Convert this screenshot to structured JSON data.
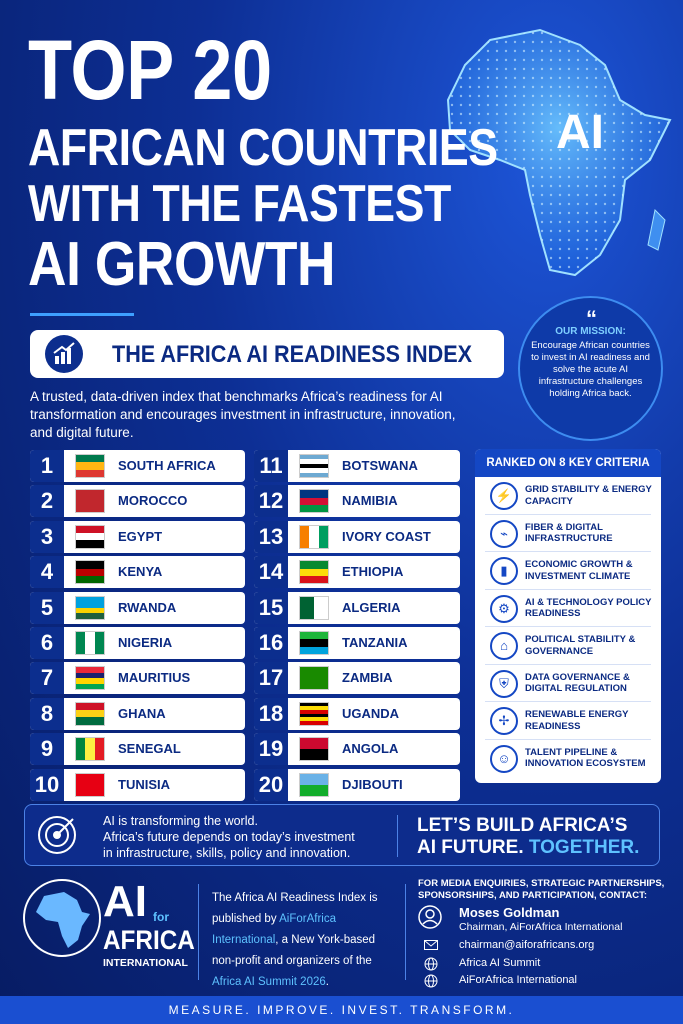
{
  "header": {
    "title_lines": [
      "TOP 20",
      "AFRICAN COUNTRIES",
      "WITH THE FASTEST",
      "AI GROWTH"
    ],
    "map_label": "AI"
  },
  "index_title": "THE AFRICA AI READINESS INDEX",
  "description": "A trusted, data-driven index that benchmarks Africa’s readiness for AI transformation and encourages investment in infrastructure, innovation, and digital future.",
  "mission": {
    "heading": "OUR MISSION:",
    "text": "Encourage African countries to invest in AI readiness and solve the acute AI infrastructure challenges holding Africa back."
  },
  "ranking": [
    {
      "rank": 1,
      "country": "SOUTH AFRICA"
    },
    {
      "rank": 2,
      "country": "MOROCCO"
    },
    {
      "rank": 3,
      "country": "EGYPT"
    },
    {
      "rank": 4,
      "country": "KENYA"
    },
    {
      "rank": 5,
      "country": "RWANDA"
    },
    {
      "rank": 6,
      "country": "NIGERIA"
    },
    {
      "rank": 7,
      "country": "MAURITIUS"
    },
    {
      "rank": 8,
      "country": "GHANA"
    },
    {
      "rank": 9,
      "country": "SENEGAL"
    },
    {
      "rank": 10,
      "country": "TUNISIA"
    },
    {
      "rank": 11,
      "country": "BOTSWANA"
    },
    {
      "rank": 12,
      "country": "NAMIBIA"
    },
    {
      "rank": 13,
      "country": "IVORY COAST"
    },
    {
      "rank": 14,
      "country": "ETHIOPIA"
    },
    {
      "rank": 15,
      "country": "ALGERIA"
    },
    {
      "rank": 16,
      "country": "TANZANIA"
    },
    {
      "rank": 17,
      "country": "ZAMBIA"
    },
    {
      "rank": 18,
      "country": "UGANDA"
    },
    {
      "rank": 19,
      "country": "ANGOLA"
    },
    {
      "rank": 20,
      "country": "DJIBOUTI"
    }
  ],
  "criteria": {
    "heading": "RANKED ON 8 KEY CRITERIA",
    "items": [
      "GRID STABILITY & ENERGY CAPACITY",
      "FIBER & DIGITAL INFRASTRUCTURE",
      "ECONOMIC GROWTH & INVESTMENT CLIMATE",
      "AI & TECHNOLOGY POLICY READINESS",
      "POLITICAL STABILITY & GOVERNANCE",
      "DATA GOVERNANCE & DIGITAL REGULATION",
      "RENEWABLE ENERGY READINESS",
      "TALENT PIPELINE & INNOVATION ECOSYSTEM"
    ]
  },
  "banner": {
    "lines": [
      "AI is transforming the world.",
      "Africa’s future depends on today’s investment",
      "in infrastructure, skills, policy and innovation."
    ],
    "cta_line1": "LET’S BUILD AFRICA’S",
    "cta_line2": "AI FUTURE.",
    "cta_line2_highlight": "TOGETHER."
  },
  "footer": {
    "logo": {
      "ai": "AI",
      "for": "for",
      "africa": "AFRICA",
      "international": "INTERNATIONAL"
    },
    "about": [
      "The Africa AI Readiness Index is published by ",
      "AiForAfrica International",
      ", a New York-based non-profit and organizers of the ",
      "Africa AI Summit 2026",
      "."
    ],
    "contact_heading": "FOR MEDIA ENQUIRIES, STRATEGIC PARTNERSHIPS, SPONSORSHIPS, AND PARTICIPATION, CONTACT:",
    "contact_name": "Moses Goldman",
    "contact_role": "Chairman, AiForAfrica International",
    "email": "chairman@aiforafricans.org",
    "site1": "Africa AI Summit",
    "site2": "AiForAfrica International"
  },
  "tagline": "MEASURE. IMPROVE. INVEST. TRANSFORM."
}
